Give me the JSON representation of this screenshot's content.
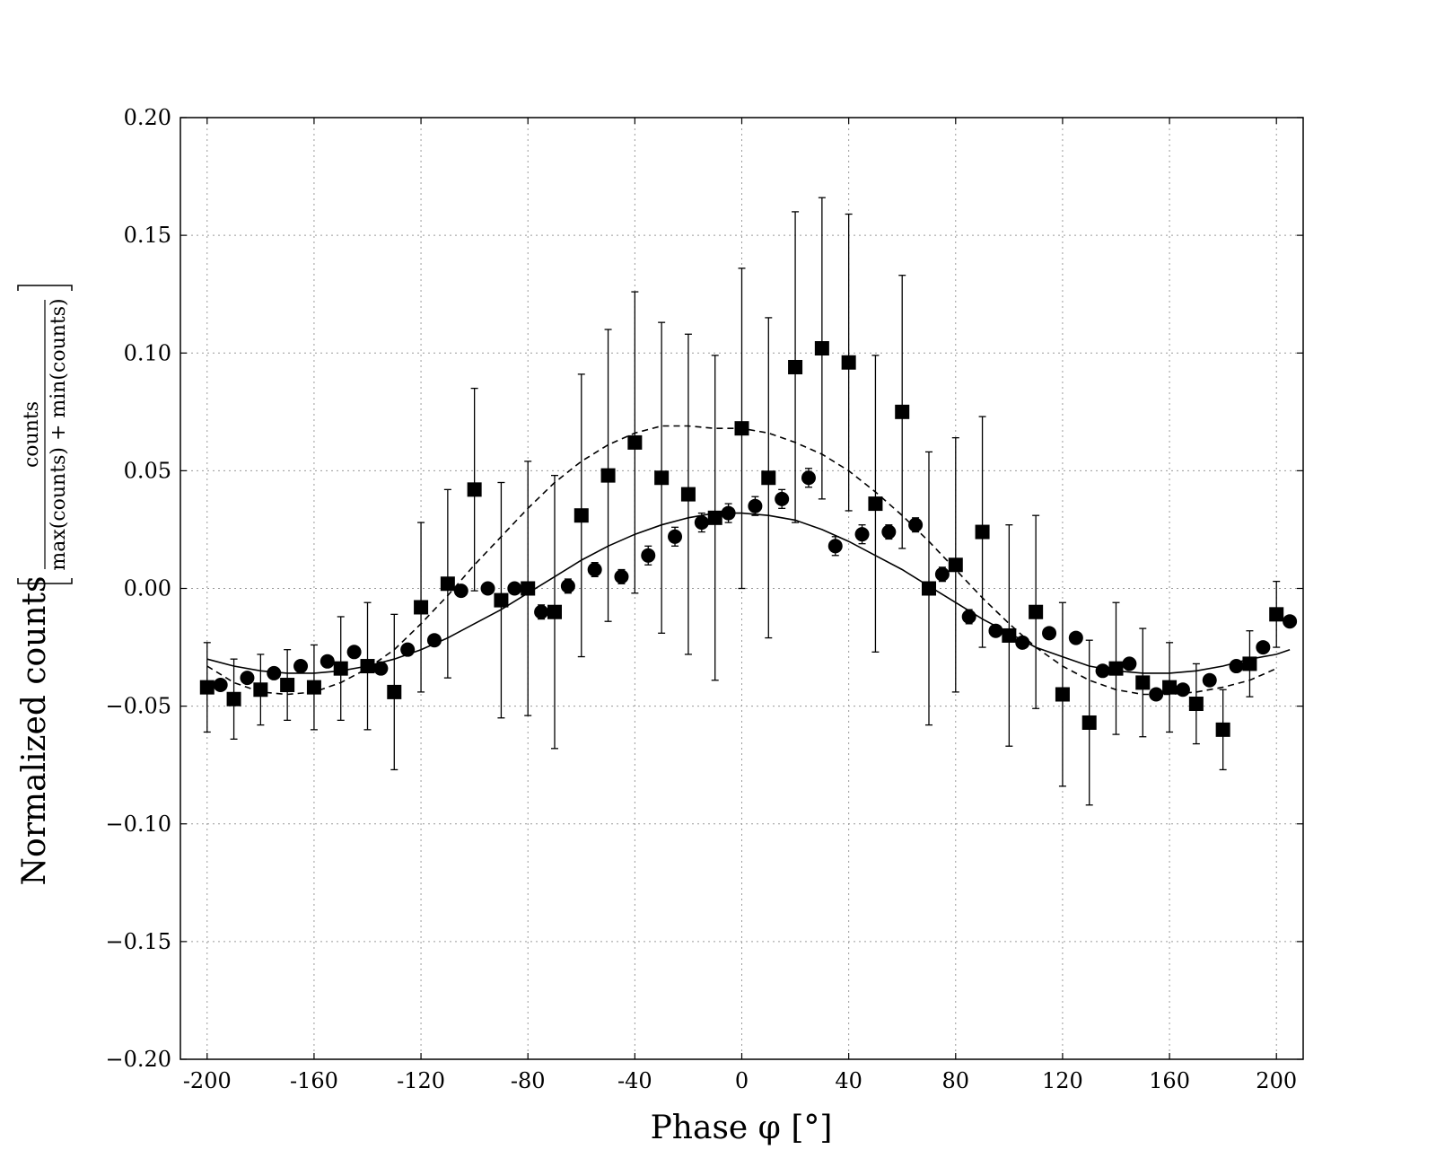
{
  "chart_data": {
    "type": "scatter",
    "title": "",
    "xlabel": "Phase φ [°]",
    "ylabel": "Normalized counts",
    "ylabel_fraction": {
      "numerator": "counts",
      "denominator": "max(counts) + min(counts)"
    },
    "xlim": [
      -210,
      210
    ],
    "ylim": [
      -0.2,
      0.2
    ],
    "xticks": [
      -200,
      -160,
      -120,
      -80,
      -40,
      0,
      40,
      80,
      120,
      160,
      200
    ],
    "xtick_labels": [
      "-200",
      "-160",
      "-120",
      "-80",
      "-40",
      "0",
      "40",
      "80",
      "120",
      "160",
      "200"
    ],
    "yticks": [
      -0.2,
      -0.15,
      -0.1,
      -0.05,
      0.0,
      0.05,
      0.1,
      0.15,
      0.2
    ],
    "ytick_labels": [
      "−0.20",
      "−0.15",
      "−0.10",
      "−0.05",
      "0.00",
      "0.05",
      "0.10",
      "0.15",
      "0.20"
    ],
    "grid": true,
    "grid_style": "dotted",
    "colors": {
      "marker": "#000000",
      "grid": "#9a9a9a"
    },
    "series": [
      {
        "marker": "square",
        "x": [
          -200,
          -190,
          -180,
          -170,
          -160,
          -150,
          -140,
          -130,
          -120,
          -110,
          -100,
          -90,
          -80,
          -70,
          -60,
          -50,
          -40,
          -30,
          -20,
          -10,
          0,
          10,
          20,
          30,
          40,
          50,
          60,
          70,
          80,
          90,
          100,
          110,
          120,
          130,
          140,
          150,
          160,
          170,
          180,
          190,
          200
        ],
        "y": [
          -0.042,
          -0.047,
          -0.043,
          -0.041,
          -0.042,
          -0.034,
          -0.033,
          -0.044,
          -0.008,
          0.002,
          0.042,
          -0.005,
          0.0,
          -0.01,
          0.031,
          0.048,
          0.062,
          0.047,
          0.04,
          0.03,
          0.068,
          0.047,
          0.094,
          0.102,
          0.096,
          0.036,
          0.075,
          0.0,
          0.01,
          0.024,
          -0.02,
          -0.01,
          -0.045,
          -0.057,
          -0.034,
          -0.04,
          -0.042,
          -0.049,
          -0.06,
          -0.032,
          -0.011
        ],
        "yerr": [
          0.019,
          0.017,
          0.015,
          0.015,
          0.018,
          0.022,
          0.027,
          0.033,
          0.036,
          0.04,
          0.043,
          0.05,
          0.054,
          0.058,
          0.06,
          0.062,
          0.064,
          0.066,
          0.068,
          0.069,
          0.068,
          0.068,
          0.066,
          0.064,
          0.063,
          0.063,
          0.058,
          0.058,
          0.054,
          0.049,
          0.047,
          0.041,
          0.039,
          0.035,
          0.028,
          0.023,
          0.019,
          0.017,
          0.017,
          0.014,
          0.014
        ]
      },
      {
        "marker": "circle",
        "x": [
          -195,
          -185,
          -175,
          -165,
          -155,
          -145,
          -135,
          -125,
          -115,
          -105,
          -95,
          -85,
          -75,
          -65,
          -55,
          -45,
          -35,
          -25,
          -15,
          -5,
          5,
          15,
          25,
          35,
          45,
          55,
          65,
          75,
          85,
          95,
          105,
          115,
          125,
          135,
          145,
          155,
          165,
          175,
          185,
          195,
          205
        ],
        "y": [
          -0.041,
          -0.038,
          -0.036,
          -0.033,
          -0.031,
          -0.027,
          -0.034,
          -0.026,
          -0.022,
          -0.001,
          0.0,
          0.0,
          -0.01,
          0.001,
          0.008,
          0.005,
          0.014,
          0.022,
          0.028,
          0.032,
          0.035,
          0.038,
          0.047,
          0.018,
          0.023,
          0.024,
          0.027,
          0.006,
          -0.012,
          -0.018,
          -0.023,
          -0.019,
          -0.021,
          -0.035,
          -0.032,
          -0.045,
          -0.043,
          -0.039,
          -0.033,
          -0.025,
          -0.014
        ],
        "yerr": [
          0.002,
          0.002,
          0.002,
          0.002,
          0.002,
          0.002,
          0.002,
          0.002,
          0.002,
          0.002,
          0.002,
          0.002,
          0.003,
          0.003,
          0.003,
          0.003,
          0.004,
          0.004,
          0.004,
          0.004,
          0.004,
          0.004,
          0.004,
          0.004,
          0.004,
          0.003,
          0.003,
          0.003,
          0.003,
          0.002,
          0.002,
          0.002,
          0.002,
          0.002,
          0.002,
          0.002,
          0.002,
          0.002,
          0.002,
          0.002,
          0.002
        ]
      },
      {
        "style": "solid",
        "line_x": [
          -200,
          -190,
          -180,
          -170,
          -160,
          -150,
          -140,
          -130,
          -120,
          -110,
          -100,
          -90,
          -80,
          -70,
          -60,
          -50,
          -40,
          -30,
          -20,
          -10,
          0,
          10,
          20,
          30,
          40,
          50,
          60,
          70,
          80,
          90,
          100,
          110,
          120,
          130,
          140,
          150,
          160,
          170,
          180,
          190,
          200,
          205
        ],
        "line_y": [
          -0.03,
          -0.033,
          -0.035,
          -0.036,
          -0.036,
          -0.035,
          -0.033,
          -0.03,
          -0.026,
          -0.021,
          -0.015,
          -0.009,
          -0.002,
          0.005,
          0.012,
          0.018,
          0.023,
          0.027,
          0.03,
          0.032,
          0.032,
          0.031,
          0.029,
          0.025,
          0.02,
          0.014,
          0.008,
          0.001,
          -0.006,
          -0.013,
          -0.019,
          -0.025,
          -0.029,
          -0.033,
          -0.035,
          -0.036,
          -0.036,
          -0.035,
          -0.033,
          -0.03,
          -0.028,
          -0.026
        ]
      },
      {
        "style": "dashed",
        "line_x": [
          -200,
          -190,
          -180,
          -170,
          -160,
          -150,
          -140,
          -130,
          -120,
          -110,
          -100,
          -90,
          -80,
          -70,
          -60,
          -50,
          -40,
          -30,
          -20,
          -10,
          0,
          10,
          20,
          30,
          40,
          50,
          60,
          70,
          80,
          90,
          100,
          110,
          120,
          130,
          140,
          150,
          160,
          170,
          180,
          190,
          200
        ],
        "line_y": [
          -0.033,
          -0.04,
          -0.044,
          -0.045,
          -0.044,
          -0.04,
          -0.034,
          -0.026,
          -0.015,
          -0.003,
          0.01,
          0.022,
          0.034,
          0.045,
          0.054,
          0.061,
          0.066,
          0.069,
          0.069,
          0.068,
          0.068,
          0.066,
          0.062,
          0.057,
          0.05,
          0.041,
          0.031,
          0.02,
          0.008,
          -0.004,
          -0.015,
          -0.025,
          -0.033,
          -0.039,
          -0.043,
          -0.045,
          -0.045,
          -0.044,
          -0.042,
          -0.039,
          -0.034
        ]
      }
    ]
  }
}
